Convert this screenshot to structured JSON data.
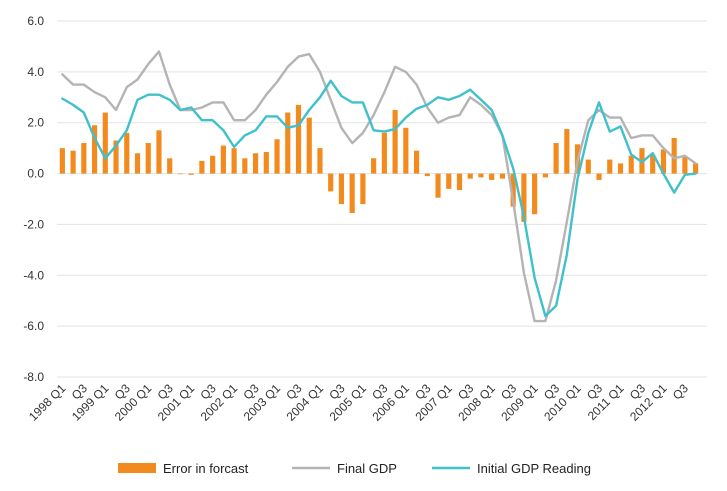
{
  "chart_data": {
    "type": "bar",
    "title": "",
    "xlabel": "",
    "ylabel": "",
    "ylim": [
      -8,
      6
    ],
    "yticks": [
      "6.0",
      "4.0",
      "2.0",
      "0.0",
      "-2.0",
      "-4.0",
      "-6.0",
      "-8.0"
    ],
    "ytick_values": [
      6,
      4,
      2,
      0,
      -2,
      -4,
      -6,
      -8
    ],
    "grid": "horizontal",
    "legend_position": "bottom",
    "x_tick_labels": [
      {
        "index": 0,
        "label": "1998 Q1"
      },
      {
        "index": 2,
        "label": "Q3"
      },
      {
        "index": 4,
        "label": "1999 Q1"
      },
      {
        "index": 6,
        "label": "Q3"
      },
      {
        "index": 8,
        "label": "2000 Q1"
      },
      {
        "index": 10,
        "label": "Q3"
      },
      {
        "index": 12,
        "label": "2001 Q1"
      },
      {
        "index": 14,
        "label": "Q3"
      },
      {
        "index": 16,
        "label": "2002 Q1"
      },
      {
        "index": 18,
        "label": "Q3"
      },
      {
        "index": 20,
        "label": "2003 Q1"
      },
      {
        "index": 22,
        "label": "Q3"
      },
      {
        "index": 24,
        "label": "2004 Q1"
      },
      {
        "index": 26,
        "label": "Q3"
      },
      {
        "index": 28,
        "label": "2005 Q1"
      },
      {
        "index": 30,
        "label": "Q3"
      },
      {
        "index": 32,
        "label": "2006 Q1"
      },
      {
        "index": 34,
        "label": "Q3"
      },
      {
        "index": 36,
        "label": "2007 Q1"
      },
      {
        "index": 38,
        "label": "Q3"
      },
      {
        "index": 40,
        "label": "2008 Q1"
      },
      {
        "index": 42,
        "label": "Q3"
      },
      {
        "index": 44,
        "label": "2009 Q1"
      },
      {
        "index": 46,
        "label": "Q3"
      },
      {
        "index": 48,
        "label": "2010 Q1"
      },
      {
        "index": 50,
        "label": "Q3"
      },
      {
        "index": 52,
        "label": "2011 Q1"
      },
      {
        "index": 54,
        "label": "Q3"
      },
      {
        "index": 56,
        "label": "2012 Q1"
      },
      {
        "index": 58,
        "label": "Q3"
      }
    ],
    "series": [
      {
        "name": "Error in forcast",
        "kind": "bar",
        "color": "#f28a1e",
        "values": [
          1.0,
          0.9,
          1.2,
          1.9,
          2.4,
          1.3,
          1.6,
          0.8,
          1.2,
          1.7,
          0.6,
          0.0,
          -0.05,
          0.5,
          0.7,
          1.1,
          1.0,
          0.6,
          0.8,
          0.85,
          1.35,
          2.4,
          2.7,
          2.2,
          1.0,
          -0.7,
          -1.2,
          -1.55,
          -1.2,
          0.6,
          1.6,
          2.5,
          1.8,
          0.9,
          -0.1,
          -0.95,
          -0.6,
          -0.65,
          -0.2,
          -0.15,
          -0.25,
          -0.2,
          -1.3,
          -1.9,
          -1.6,
          -0.15,
          1.2,
          1.75,
          1.15,
          0.55,
          -0.25,
          0.55,
          0.4,
          0.7,
          1.0,
          0.75,
          0.95,
          1.4,
          0.65,
          0.4
        ]
      },
      {
        "name": "Final GDP",
        "kind": "line",
        "color": "#b4b4b4",
        "values": [
          3.9,
          3.5,
          3.5,
          3.2,
          3.0,
          2.5,
          3.4,
          3.7,
          4.3,
          4.8,
          3.5,
          2.5,
          2.5,
          2.6,
          2.8,
          2.8,
          2.1,
          2.1,
          2.5,
          3.1,
          3.6,
          4.2,
          4.6,
          4.7,
          4.0,
          2.9,
          1.8,
          1.2,
          1.6,
          2.3,
          3.2,
          4.2,
          4.0,
          3.5,
          2.6,
          2.0,
          2.2,
          2.3,
          3.0,
          2.7,
          2.3,
          1.5,
          -1.1,
          -3.9,
          -5.8,
          -5.8,
          -4.2,
          -1.9,
          0.5,
          2.1,
          2.5,
          2.2,
          2.2,
          1.4,
          1.5,
          1.5,
          1.0,
          0.6,
          0.7,
          0.4
        ]
      },
      {
        "name": "Initial GDP Reading",
        "kind": "line",
        "color": "#3fc1cc",
        "values": [
          2.95,
          2.7,
          2.4,
          1.4,
          0.6,
          1.1,
          1.7,
          2.9,
          3.1,
          3.1,
          2.9,
          2.5,
          2.6,
          2.1,
          2.1,
          1.7,
          1.05,
          1.5,
          1.7,
          2.25,
          2.25,
          1.8,
          1.9,
          2.5,
          3.0,
          3.65,
          3.05,
          2.8,
          2.8,
          1.7,
          1.65,
          1.75,
          2.2,
          2.55,
          2.7,
          3.0,
          2.9,
          3.05,
          3.3,
          2.9,
          2.5,
          1.5,
          0.2,
          -1.7,
          -4.1,
          -5.6,
          -5.2,
          -3.2,
          -0.2,
          1.6,
          2.8,
          1.65,
          1.85,
          0.75,
          0.45,
          0.8,
          0.0,
          -0.75,
          -0.05,
          0.0
        ]
      }
    ]
  }
}
